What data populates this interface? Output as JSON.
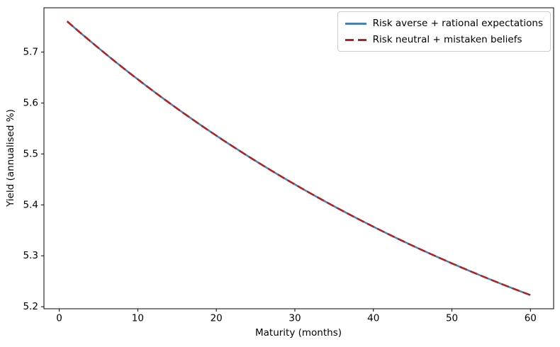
{
  "figure": {
    "background": "#ffffff",
    "frame_color": "#000000",
    "text_color": "#000000",
    "legend_border_color": "#cccccc"
  },
  "chart_data": {
    "type": "line",
    "title": "",
    "xlabel": "Maturity (months)",
    "ylabel": "Yield (annualised %)",
    "xlim": [
      -1.95,
      62.95
    ],
    "ylim": [
      5.196,
      5.787
    ],
    "x_ticks": [
      0,
      10,
      20,
      30,
      40,
      50,
      60
    ],
    "y_ticks": [
      5.2,
      5.3,
      5.4,
      5.5,
      5.6,
      5.7
    ],
    "grid": false,
    "legend_position": "upper right",
    "x": [
      1,
      2,
      3,
      4,
      5,
      6,
      7,
      8,
      9,
      10,
      11,
      12,
      13,
      14,
      15,
      16,
      17,
      18,
      19,
      20,
      21,
      22,
      23,
      24,
      25,
      26,
      27,
      28,
      29,
      30,
      31,
      32,
      33,
      34,
      35,
      36,
      37,
      38,
      39,
      40,
      41,
      42,
      43,
      44,
      45,
      46,
      47,
      48,
      49,
      50,
      51,
      52,
      53,
      54,
      55,
      56,
      57,
      58,
      59,
      60
    ],
    "series": [
      {
        "name": "Risk averse + rational expectations",
        "color": "#4682b4",
        "style": "solid",
        "linewidth": 2.5,
        "values": [
          5.7604,
          5.747,
          5.7338,
          5.7208,
          5.708,
          5.6953,
          5.6828,
          5.6705,
          5.6584,
          5.6465,
          5.6347,
          5.6231,
          5.6116,
          5.6004,
          5.5892,
          5.5783,
          5.5675,
          5.5568,
          5.5463,
          5.536,
          5.5257,
          5.5157,
          5.5058,
          5.496,
          5.4863,
          5.4768,
          5.4675,
          5.4582,
          5.4491,
          5.4402,
          5.4313,
          5.4226,
          5.414,
          5.4055,
          5.3971,
          5.3889,
          5.3808,
          5.3728,
          5.3649,
          5.3571,
          5.3494,
          5.3419,
          5.3344,
          5.3271,
          5.3198,
          5.3127,
          5.3057,
          5.2987,
          5.2919,
          5.2851,
          5.2785,
          5.2719,
          5.2655,
          5.2591,
          5.2528,
          5.2466,
          5.2405,
          5.2345,
          5.2286,
          5.2228
        ]
      },
      {
        "name": "Risk neutral + mistaken beliefs",
        "color": "#b22222",
        "style": "dashed",
        "linewidth": 2.5,
        "values": [
          5.7604,
          5.747,
          5.7338,
          5.7208,
          5.708,
          5.6953,
          5.6828,
          5.6705,
          5.6584,
          5.6465,
          5.6347,
          5.6231,
          5.6116,
          5.6004,
          5.5892,
          5.5783,
          5.5675,
          5.5568,
          5.5463,
          5.536,
          5.5257,
          5.5157,
          5.5058,
          5.496,
          5.4863,
          5.4768,
          5.4675,
          5.4582,
          5.4491,
          5.4402,
          5.4313,
          5.4226,
          5.414,
          5.4055,
          5.3971,
          5.3889,
          5.3808,
          5.3728,
          5.3649,
          5.3571,
          5.3494,
          5.3419,
          5.3344,
          5.3271,
          5.3198,
          5.3127,
          5.3057,
          5.2987,
          5.2919,
          5.2851,
          5.2785,
          5.2719,
          5.2655,
          5.2591,
          5.2528,
          5.2466,
          5.2405,
          5.2345,
          5.2286,
          5.2228
        ]
      }
    ]
  }
}
